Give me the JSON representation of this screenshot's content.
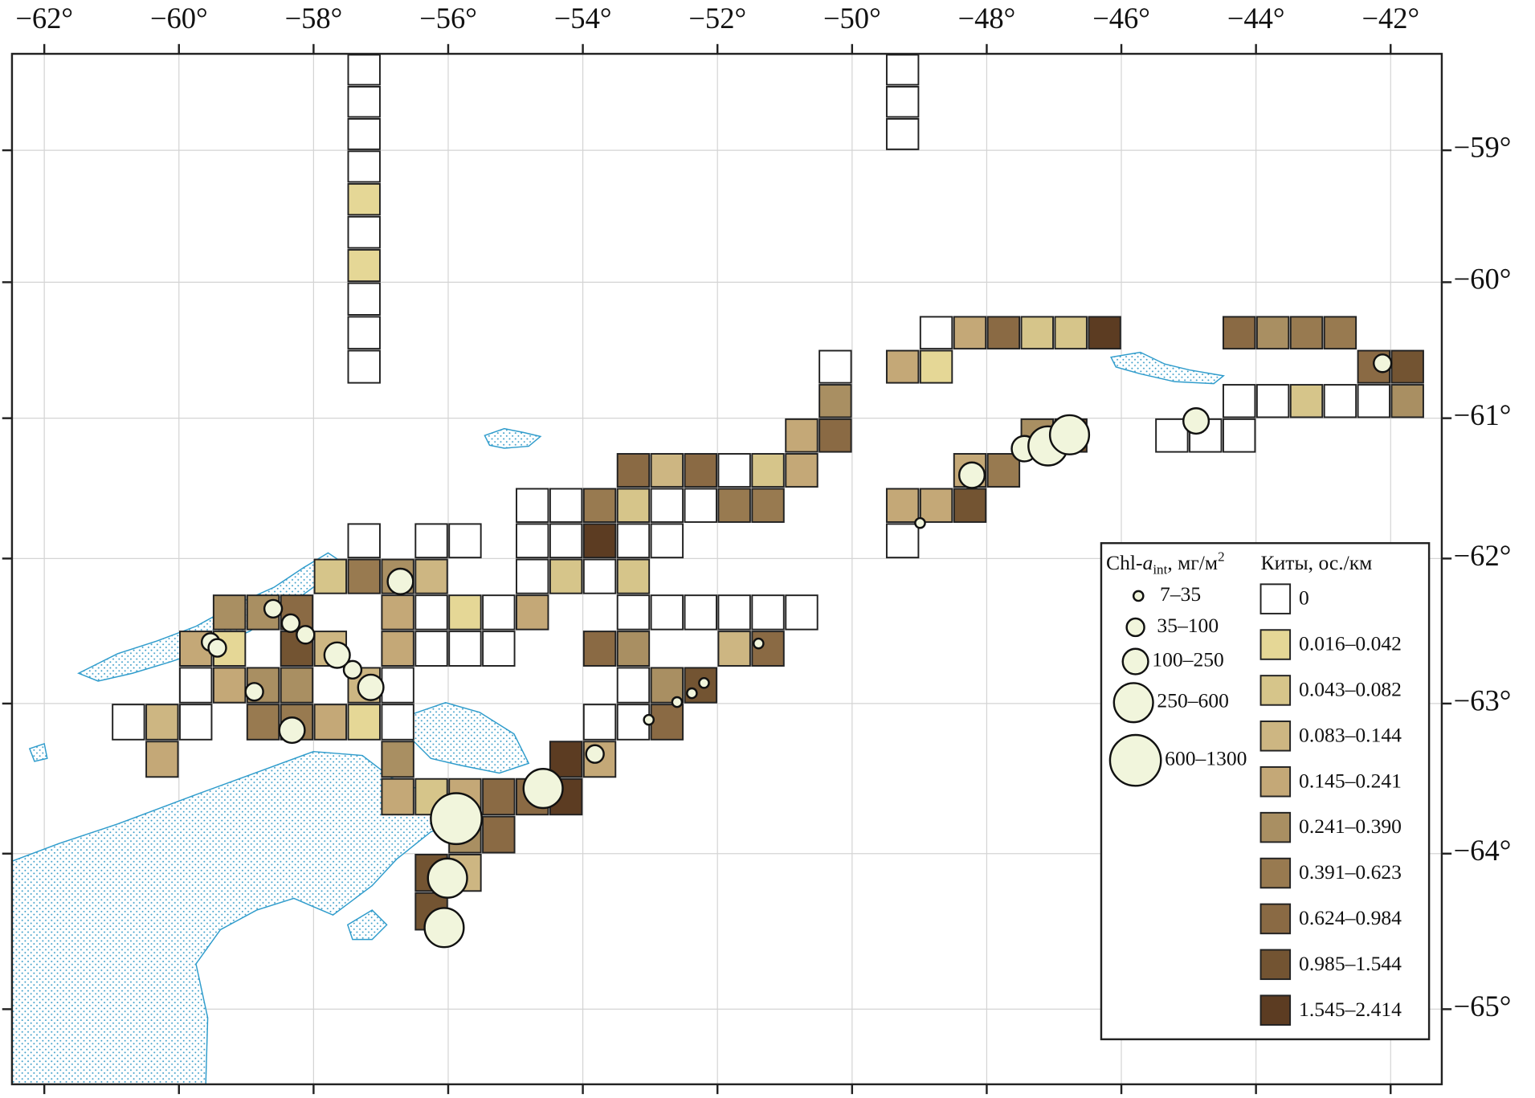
{
  "map": {
    "xlim": [
      -62.48,
      -41.24
    ],
    "ylim": [
      -65.47,
      -58.25
    ],
    "lon_ticks": [
      {
        "value": -62,
        "label": "−62°"
      },
      {
        "value": -60,
        "label": "−60°"
      },
      {
        "value": -58,
        "label": "−58°"
      },
      {
        "value": -56,
        "label": "−56°"
      },
      {
        "value": -54,
        "label": "−54°"
      },
      {
        "value": -52,
        "label": "−52°"
      },
      {
        "value": -50,
        "label": "−50°"
      },
      {
        "value": -48,
        "label": "−48°"
      },
      {
        "value": -46,
        "label": "−46°"
      },
      {
        "value": -44,
        "label": "−44°"
      },
      {
        "value": -42,
        "label": "−42°"
      }
    ],
    "lat_ticks": [
      {
        "value": -59,
        "label": "−59°"
      },
      {
        "value": -60,
        "label": "−60°"
      },
      {
        "value": -61,
        "label": "−61°"
      },
      {
        "value": -62,
        "label": "−62°"
      },
      {
        "value": -63,
        "label": "−63°"
      },
      {
        "value": -64,
        "label": "−64°"
      },
      {
        "value": -65,
        "label": "−65°"
      }
    ],
    "legend": {
      "chl_title": [
        "Chl-",
        "a",
        "int",
        ", мг/м",
        "2"
      ],
      "whale_title": "Киты, ос./км"
    },
    "chl_classes": [
      {
        "label": "7–35",
        "points": [
          [
            -51.39,
            -62.59
          ],
          [
            -52.2,
            -62.86
          ],
          [
            -52.38,
            -62.93
          ],
          [
            -52.6,
            -62.99
          ],
          [
            -53.02,
            -63.11
          ],
          [
            -48.99,
            -61.75
          ]
        ]
      },
      {
        "label": "35–100",
        "points": [
          [
            -58.6,
            -62.35
          ],
          [
            -58.34,
            -62.45
          ],
          [
            -58.12,
            -62.53
          ],
          [
            -59.53,
            -62.58
          ],
          [
            -59.43,
            -62.62
          ],
          [
            -57.42,
            -62.77
          ],
          [
            -58.88,
            -62.92
          ],
          [
            -53.82,
            -63.34
          ],
          [
            -42.12,
            -60.6
          ]
        ]
      },
      {
        "label": "100–250",
        "points": [
          [
            -56.71,
            -62.16
          ],
          [
            -57.65,
            -62.67
          ],
          [
            -57.15,
            -62.89
          ],
          [
            -58.32,
            -63.18
          ],
          [
            -48.22,
            -61.41
          ],
          [
            -47.44,
            -61.22
          ],
          [
            -44.89,
            -61.02
          ]
        ]
      },
      {
        "label": "250–600",
        "points": [
          [
            -54.59,
            -63.57
          ],
          [
            -56.01,
            -64.16
          ],
          [
            -56.06,
            -64.48
          ],
          [
            -47.09,
            -61.2
          ],
          [
            -46.77,
            -61.12
          ]
        ]
      },
      {
        "label": "600–1300",
        "points": [
          [
            -55.88,
            -63.77
          ]
        ]
      }
    ],
    "whale_classes": [
      {
        "label": "0",
        "color": "#ffffff",
        "cells": [
          [
            -57.5,
            -58.25
          ],
          [
            -57.5,
            -58.5
          ],
          [
            -57.5,
            -58.75
          ],
          [
            -57.5,
            -59
          ],
          [
            -57.5,
            -59.5
          ],
          [
            -57.5,
            -60
          ],
          [
            -57.5,
            -60.25
          ],
          [
            -57.5,
            -60.5
          ],
          [
            -49.5,
            -58.25
          ],
          [
            -49.5,
            -58.5
          ],
          [
            -49.5,
            -58.75
          ],
          [
            -49,
            -60.25
          ],
          [
            -50.5,
            -60.5
          ],
          [
            -44.5,
            -60.75
          ],
          [
            -44,
            -60.75
          ],
          [
            -43,
            -60.75
          ],
          [
            -42.5,
            -60.75
          ],
          [
            -45.5,
            -61
          ],
          [
            -45,
            -61
          ],
          [
            -44.5,
            -61
          ],
          [
            -52,
            -61.25
          ],
          [
            -55,
            -61.5
          ],
          [
            -54.5,
            -61.5
          ],
          [
            -53,
            -61.5
          ],
          [
            -52.5,
            -61.5
          ],
          [
            -57.5,
            -61.75
          ],
          [
            -56.5,
            -61.75
          ],
          [
            -56,
            -61.75
          ],
          [
            -55,
            -61.75
          ],
          [
            -54.5,
            -61.75
          ],
          [
            -53.5,
            -61.75
          ],
          [
            -53,
            -61.75
          ],
          [
            -49.5,
            -61.75
          ],
          [
            -55,
            -62
          ],
          [
            -54,
            -62
          ],
          [
            -56.5,
            -62.25
          ],
          [
            -55.5,
            -62.25
          ],
          [
            -53.5,
            -62.25
          ],
          [
            -53,
            -62.25
          ],
          [
            -52.5,
            -62.25
          ],
          [
            -52,
            -62.25
          ],
          [
            -51.5,
            -62.25
          ],
          [
            -51,
            -62.25
          ],
          [
            -56.5,
            -62.5
          ],
          [
            -56,
            -62.5
          ],
          [
            -55.5,
            -62.5
          ],
          [
            -60,
            -62.75
          ],
          [
            -57,
            -62.75
          ],
          [
            -53.5,
            -62.75
          ],
          [
            -61,
            -63
          ],
          [
            -60,
            -63
          ],
          [
            -57,
            -63
          ],
          [
            -54,
            -63
          ],
          [
            -53.5,
            -63
          ]
        ]
      },
      {
        "label": "0.016–0.042",
        "color": "#e5d796",
        "cells": [
          [
            -57.5,
            -59.25
          ],
          [
            -57.5,
            -59.75
          ],
          [
            -49,
            -60.5
          ],
          [
            -56,
            -62.25
          ],
          [
            -59.5,
            -62.5
          ],
          [
            -57.5,
            -63
          ]
        ]
      },
      {
        "label": "0.043–0.082",
        "color": "#d6c58a",
        "cells": [
          [
            -47.5,
            -60.25
          ],
          [
            -47,
            -60.25
          ],
          [
            -43.5,
            -60.75
          ],
          [
            -51.5,
            -61.25
          ],
          [
            -53.5,
            -61.5
          ],
          [
            -58,
            -62
          ],
          [
            -54.5,
            -62
          ],
          [
            -53.5,
            -62
          ],
          [
            -56.5,
            -63.5
          ]
        ]
      },
      {
        "label": "0.083–0.144",
        "color": "#cdb682",
        "cells": [
          [
            -53,
            -61.25
          ],
          [
            -56.5,
            -62
          ],
          [
            -58,
            -62.5
          ],
          [
            -52,
            -62.5
          ],
          [
            -57.5,
            -62.75
          ],
          [
            -60.5,
            -63
          ],
          [
            -56,
            -64
          ]
        ]
      },
      {
        "label": "0.145–0.241",
        "color": "#c4a877",
        "cells": [
          [
            -48.5,
            -60.25
          ],
          [
            -49.5,
            -60.5
          ],
          [
            -51,
            -61
          ],
          [
            -51,
            -61.25
          ],
          [
            -48.5,
            -61.25
          ],
          [
            -49.5,
            -61.5
          ],
          [
            -49,
            -61.5
          ],
          [
            -57,
            -62.25
          ],
          [
            -55,
            -62.25
          ],
          [
            -60,
            -62.5
          ],
          [
            -57,
            -62.5
          ],
          [
            -59.5,
            -62.75
          ],
          [
            -58,
            -63
          ],
          [
            -60.5,
            -63.25
          ],
          [
            -54,
            -63.25
          ],
          [
            -57,
            -63.5
          ],
          [
            -56,
            -63.5
          ]
        ]
      },
      {
        "label": "0.241–0.390",
        "color": "#a98f62",
        "cells": [
          [
            -44,
            -60.25
          ],
          [
            -50.5,
            -60.75
          ],
          [
            -42,
            -60.75
          ],
          [
            -47.5,
            -61
          ],
          [
            -57,
            -62
          ],
          [
            -59.5,
            -62.25
          ],
          [
            -59,
            -62.25
          ],
          [
            -53.5,
            -62.5
          ],
          [
            -59,
            -62.75
          ],
          [
            -58.5,
            -62.75
          ],
          [
            -53,
            -62.75
          ],
          [
            -57,
            -63.25
          ],
          [
            -56,
            -63.75
          ]
        ]
      },
      {
        "label": "0.391–0.623",
        "color": "#987a50",
        "cells": [
          [
            -43.5,
            -60.25
          ],
          [
            -43,
            -60.25
          ],
          [
            -48,
            -61.25
          ],
          [
            -54,
            -61.5
          ],
          [
            -52,
            -61.5
          ],
          [
            -51.5,
            -61.5
          ],
          [
            -57.5,
            -62
          ],
          [
            -59,
            -63
          ],
          [
            -58.5,
            -63
          ]
        ]
      },
      {
        "label": "0.624–0.984",
        "color": "#8a6a44",
        "cells": [
          [
            -48,
            -60.25
          ],
          [
            -44.5,
            -60.25
          ],
          [
            -42.5,
            -60.5
          ],
          [
            -50.5,
            -61
          ],
          [
            -53.5,
            -61.25
          ],
          [
            -52.5,
            -61.25
          ],
          [
            -58.5,
            -62.25
          ],
          [
            -54,
            -62.5
          ],
          [
            -51.5,
            -62.5
          ],
          [
            -53,
            -63
          ],
          [
            -55.5,
            -63.5
          ],
          [
            -55,
            -63.5
          ],
          [
            -55.5,
            -63.75
          ]
        ]
      },
      {
        "label": "0.985–1.544",
        "color": "#735432",
        "cells": [
          [
            -42,
            -60.5
          ],
          [
            -47,
            -61
          ],
          [
            -48.5,
            -61.5
          ],
          [
            -58.5,
            -62.5
          ],
          [
            -52.5,
            -62.75
          ],
          [
            -56.5,
            -64
          ],
          [
            -56.5,
            -64.25
          ]
        ]
      },
      {
        "label": "1.545–2.414",
        "color": "#5c3c22",
        "cells": [
          [
            -46.5,
            -60.25
          ],
          [
            -54,
            -61.75
          ],
          [
            -54.5,
            -63.25
          ],
          [
            -54.5,
            -63.5
          ]
        ]
      }
    ]
  }
}
